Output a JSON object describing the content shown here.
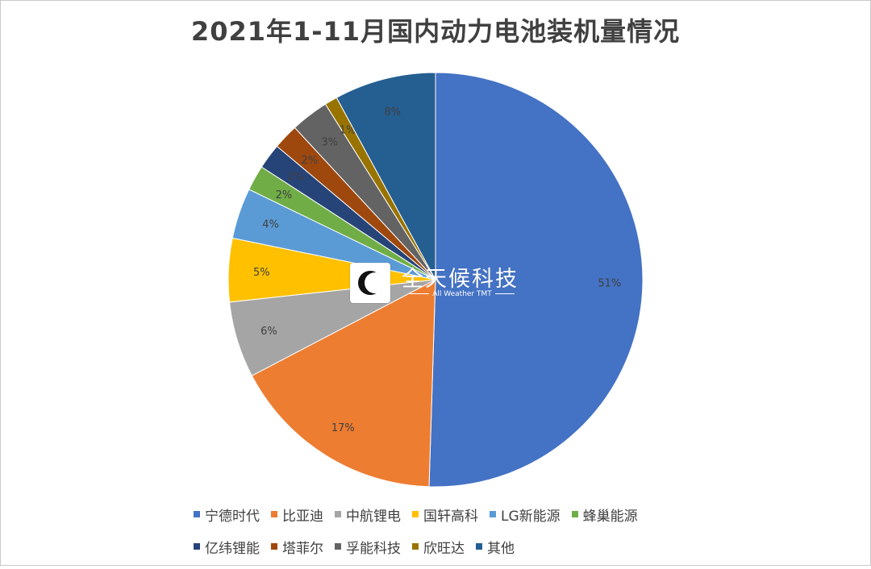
{
  "chart_data": {
    "type": "pie",
    "title": "2021年1-11月国内动力电池装机量情况",
    "slices": [
      {
        "name": "宁德时代",
        "value": 51,
        "label": "51%",
        "color": "#4472C4"
      },
      {
        "name": "比亚迪",
        "value": 17,
        "label": "17%",
        "color": "#ED7D31"
      },
      {
        "name": "中航锂电",
        "value": 6,
        "label": "6%",
        "color": "#A5A5A5"
      },
      {
        "name": "国轩高科",
        "value": 5,
        "label": "5%",
        "color": "#FFC000"
      },
      {
        "name": "LG新能源",
        "value": 4,
        "label": "4%",
        "color": "#5B9BD5"
      },
      {
        "name": "蜂巢能源",
        "value": 2,
        "label": "2%",
        "color": "#70AD47"
      },
      {
        "name": "亿纬锂能",
        "value": 2,
        "label": "2%",
        "color": "#264478"
      },
      {
        "name": "塔菲尔",
        "value": 2,
        "label": "2%",
        "color": "#9E480E"
      },
      {
        "name": "孚能科技",
        "value": 3,
        "label": "3%",
        "color": "#636363"
      },
      {
        "name": "欣旺达",
        "value": 1,
        "label": "1%",
        "color": "#997300"
      },
      {
        "name": "其他",
        "value": 8,
        "label": "8%",
        "color": "#255E91"
      }
    ],
    "start_angle": "12 o'clock",
    "direction": "clockwise",
    "legend_position": "bottom"
  },
  "watermark": {
    "name": "全天候科技",
    "subtitle": "All Weather TMT",
    "icon": "crescent-moon-icon"
  }
}
